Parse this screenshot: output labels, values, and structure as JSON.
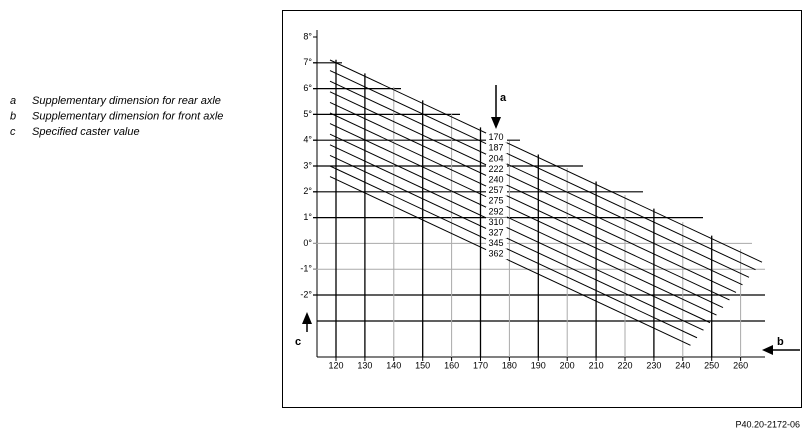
{
  "legend": [
    {
      "key": "a",
      "text": "Supplementary dimension for rear axle"
    },
    {
      "key": "b",
      "text": "Supplementary dimension for front axle"
    },
    {
      "key": "c",
      "text": "Specified caster value"
    }
  ],
  "diagram": {
    "y_ticks": [
      "8°",
      "7°",
      "6°",
      "5°",
      "4°",
      "3°",
      "2°",
      "1°",
      "0°",
      "-1°",
      "-2°"
    ],
    "x_ticks": [
      120,
      130,
      140,
      150,
      160,
      170,
      180,
      190,
      200,
      210,
      220,
      230,
      240,
      250,
      260
    ],
    "line_labels": [
      170,
      187,
      204,
      222,
      240,
      257,
      275,
      292,
      310,
      327,
      345,
      362
    ],
    "arrow_a": "a",
    "arrow_b": "b",
    "arrow_c": "c"
  },
  "figure_code": "P40.20-2172-06"
}
